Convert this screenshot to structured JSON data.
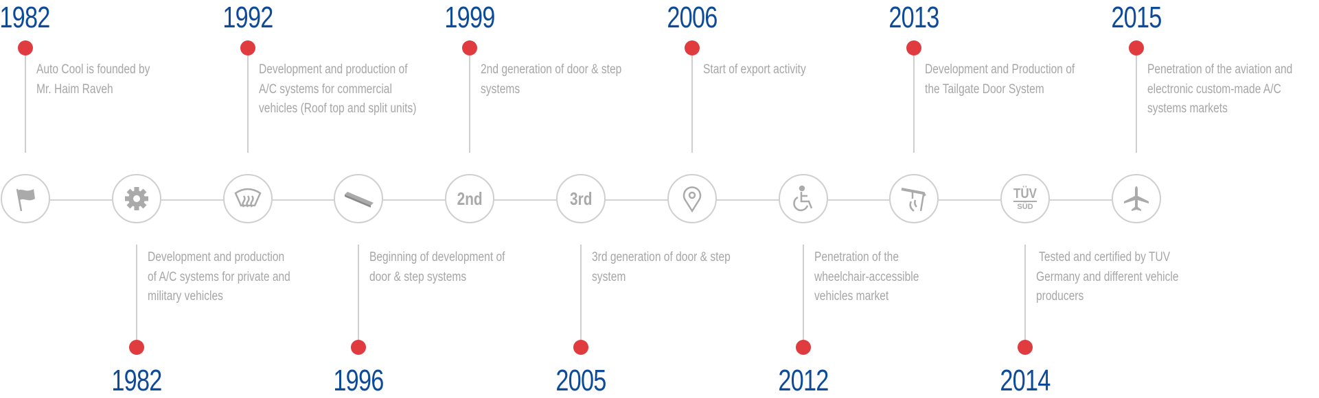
{
  "colors": {
    "year": "#0d4a9a",
    "dot": "#e03c3f",
    "text": "#a6a6a6",
    "line": "#d3d3d3"
  },
  "milestones": [
    {
      "year": "1982",
      "position": "top",
      "lines": [
        "Auto Cool is founded by",
        "Mr. Haim Raveh"
      ],
      "icon": "flag-icon"
    },
    {
      "year": "1982",
      "position": "bottom",
      "lines": [
        "Development and production",
        "of A/C systems for private and",
        "military vehicles"
      ],
      "icon": "gear-icon"
    },
    {
      "year": "1992",
      "position": "top",
      "lines": [
        "Development and production of",
        "A/C systems for commercial",
        "vehicles (Roof top and split units)"
      ],
      "icon": "defrost-icon"
    },
    {
      "year": "1996",
      "position": "bottom",
      "lines": [
        "Beginning of development of",
        "door & step systems"
      ],
      "icon": "step-board-icon"
    },
    {
      "year": "1999",
      "position": "top",
      "lines": [
        "2nd generation of door & step",
        "systems"
      ],
      "icon": "second-generation-icon",
      "icon_text": "2nd"
    },
    {
      "year": "2005",
      "position": "bottom",
      "lines": [
        "3rd generation of door & step",
        "system"
      ],
      "icon": "third-generation-icon",
      "icon_text": "3rd"
    },
    {
      "year": "2006",
      "position": "top",
      "lines": [
        "Start of export activity"
      ],
      "icon": "location-pin-icon"
    },
    {
      "year": "2012",
      "position": "bottom",
      "lines": [
        "Penetration of the",
        "wheelchair-accessible",
        "vehicles market"
      ],
      "icon": "wheelchair-icon"
    },
    {
      "year": "2013",
      "position": "top",
      "lines": [
        "Development and Production of",
        "the Tailgate Door System"
      ],
      "icon": "tailgate-icon"
    },
    {
      "year": "2014",
      "position": "bottom",
      "lines": [
        " Tested and certified by TUV",
        "Germany and different vehicle",
        "producers"
      ],
      "icon": "tuv-sud-logo-icon",
      "icon_text": "TÜV",
      "icon_subtext": "SÜD"
    },
    {
      "year": "2015",
      "position": "top",
      "lines": [
        "Penetration of the aviation and",
        "electronic custom-made A/C",
        "systems markets"
      ],
      "icon": "airplane-icon"
    }
  ]
}
